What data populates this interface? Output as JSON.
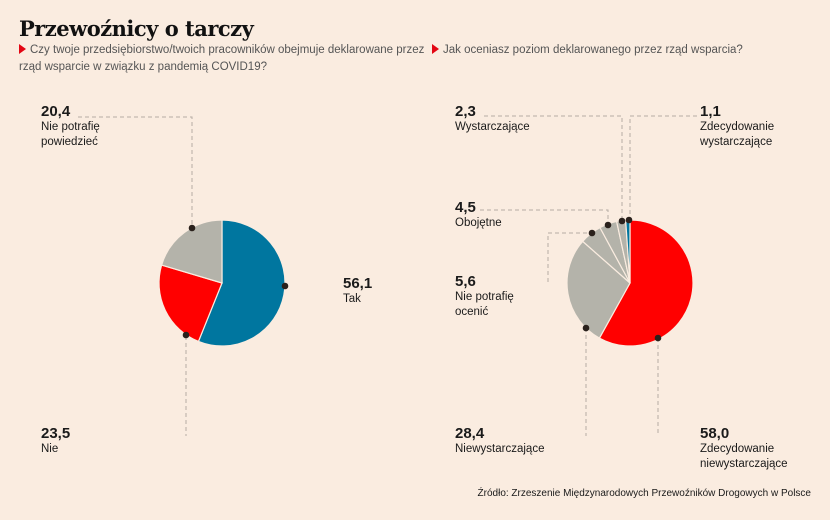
{
  "title": "Przewoźnicy o tarczy",
  "source": "Źródło: Zrzeszenie Międzynarodowych Przewoźników Drogowych w Polsce",
  "chart_data": [
    {
      "type": "pie",
      "title": "Czy twoje przedsiębiorstwo/twoich pracowników obejmuje deklarowane przez rząd wsparcie w związku z pandemią COVID19?",
      "slices": [
        {
          "label": "Tak",
          "value": 56.1,
          "display": "56,1",
          "color": "#00769f"
        },
        {
          "label": "Nie",
          "value": 23.5,
          "display": "23,5",
          "color": "#ff0000"
        },
        {
          "label": "Nie potrafię powiedzieć",
          "value": 20.4,
          "display": "20,4",
          "color": "#b4b3aa"
        }
      ]
    },
    {
      "type": "pie",
      "title": "Jak oceniasz poziom deklarowanego przez rząd wsparcia?",
      "slices": [
        {
          "label": "Zdecydowanie niewystarczające",
          "value": 58.0,
          "display": "58,0",
          "color": "#ff0000"
        },
        {
          "label": "Niewystarczające",
          "value": 28.4,
          "display": "28,4",
          "color": "#b4b3aa"
        },
        {
          "label": "Nie potrafię ocenić",
          "value": 5.6,
          "display": "5,6",
          "color": "#b4b3aa"
        },
        {
          "label": "Obojętne",
          "value": 4.5,
          "display": "4,5",
          "color": "#b4b3aa"
        },
        {
          "label": "Wystarczające",
          "value": 2.3,
          "display": "2,3",
          "color": "#b4b3aa"
        },
        {
          "label": "Zdecydowanie wystarczające",
          "value": 1.1,
          "display": "1,1",
          "color": "#00769f"
        }
      ]
    }
  ]
}
